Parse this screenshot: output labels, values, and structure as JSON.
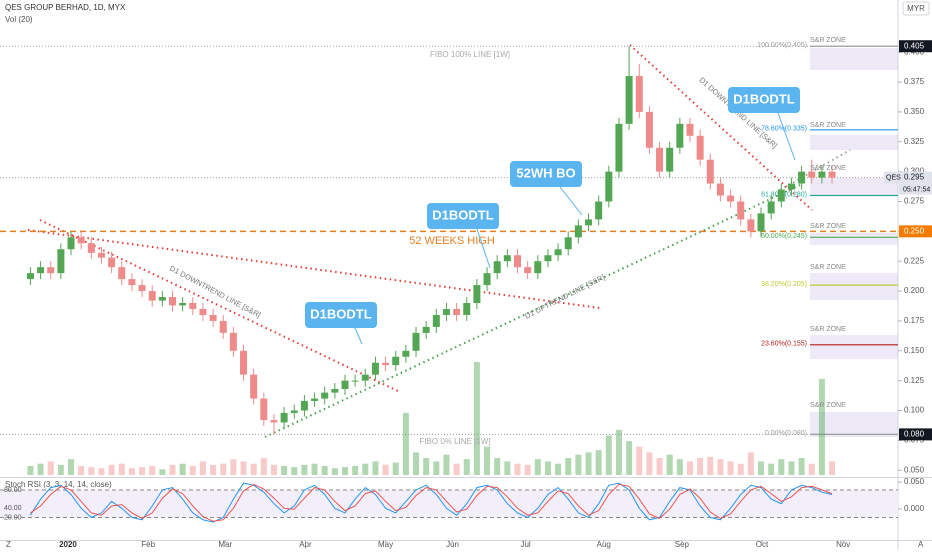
{
  "header": {
    "title": "QES GROUP BERHAD, 1D, MYX",
    "volume_label": "Vol (20)",
    "stoch_label": "Stoch RSI (3, 3, 14, 14, close)",
    "currency": "MYR",
    "symbol": "QES",
    "countdown": "05:47:54",
    "left_button": "Z",
    "right_button": "A"
  },
  "chart_data": {
    "type": "candlestick",
    "xlim": [
      -3,
      85.5
    ],
    "xticks": [
      {
        "value": 3.7,
        "label": "2020"
      },
      {
        "value": 11.6,
        "label": "Feb"
      },
      {
        "value": 19.2,
        "label": "Mar"
      },
      {
        "value": 27.1,
        "label": "Apr"
      },
      {
        "value": 35,
        "label": "May"
      },
      {
        "value": 41.6,
        "label": "Jun"
      },
      {
        "value": 48.8,
        "label": "Jul"
      },
      {
        "value": 56.5,
        "label": "Aug"
      },
      {
        "value": 64.2,
        "label": "Sep"
      },
      {
        "value": 72.1,
        "label": "Oct"
      },
      {
        "value": 80.1,
        "label": "Nov"
      }
    ],
    "ylim": [
      0.046,
      0.437
    ],
    "yticks": [
      {
        "value": 0.05,
        "label": "0.050"
      },
      {
        "value": 0.075,
        "label": "0.075"
      },
      {
        "value": 0.1,
        "label": "0.100"
      },
      {
        "value": 0.125,
        "label": "0.125"
      },
      {
        "value": 0.15,
        "label": "0.150"
      },
      {
        "value": 0.175,
        "label": "0.175"
      },
      {
        "value": 0.2,
        "label": "0.200"
      },
      {
        "value": 0.225,
        "label": "0.225"
      },
      {
        "value": 0.25,
        "label": "0.250"
      },
      {
        "value": 0.275,
        "label": "0.275"
      },
      {
        "value": 0.3,
        "label": "0.300"
      },
      {
        "value": 0.325,
        "label": "0.325"
      },
      {
        "value": 0.35,
        "label": "0.350"
      },
      {
        "value": 0.375,
        "label": "0.375"
      },
      {
        "value": 0.4,
        "label": "0.400"
      }
    ],
    "up_color": "#53a653",
    "down_color": "#ef8a8a",
    "open": [
      0.21,
      0.215,
      0.22,
      0.215,
      0.235,
      0.245,
      0.24,
      0.232,
      0.228,
      0.22,
      0.21,
      0.205,
      0.2,
      0.192,
      0.195,
      0.188,
      0.19,
      0.185,
      0.18,
      0.175,
      0.165,
      0.15,
      0.13,
      0.11,
      0.092,
      0.09,
      0.098,
      0.1,
      0.108,
      0.11,
      0.115,
      0.118,
      0.125,
      0.125,
      0.13,
      0.14,
      0.138,
      0.145,
      0.15,
      0.165,
      0.17,
      0.18,
      0.185,
      0.18,
      0.19,
      0.205,
      0.215,
      0.225,
      0.23,
      0.22,
      0.215,
      0.225,
      0.23,
      0.235,
      0.245,
      0.255,
      0.26,
      0.275,
      0.3,
      0.34,
      0.38,
      0.35,
      0.32,
      0.3,
      0.32,
      0.34,
      0.33,
      0.31,
      0.29,
      0.28,
      0.275,
      0.26,
      0.25,
      0.265,
      0.275,
      0.285,
      0.29,
      0.3,
      0.295,
      0.3
    ],
    "high": [
      0.22,
      0.225,
      0.225,
      0.24,
      0.25,
      0.25,
      0.245,
      0.237,
      0.233,
      0.225,
      0.215,
      0.21,
      0.205,
      0.2,
      0.2,
      0.195,
      0.195,
      0.19,
      0.185,
      0.18,
      0.17,
      0.155,
      0.135,
      0.115,
      0.097,
      0.103,
      0.105,
      0.113,
      0.115,
      0.12,
      0.123,
      0.13,
      0.13,
      0.135,
      0.145,
      0.145,
      0.15,
      0.155,
      0.17,
      0.175,
      0.185,
      0.19,
      0.19,
      0.195,
      0.21,
      0.22,
      0.23,
      0.235,
      0.235,
      0.225,
      0.23,
      0.235,
      0.24,
      0.25,
      0.26,
      0.265,
      0.28,
      0.305,
      0.345,
      0.405,
      0.39,
      0.355,
      0.325,
      0.325,
      0.345,
      0.345,
      0.335,
      0.315,
      0.295,
      0.285,
      0.28,
      0.265,
      0.27,
      0.28,
      0.29,
      0.295,
      0.305,
      0.31,
      0.305,
      0.305
    ],
    "low": [
      0.205,
      0.21,
      0.21,
      0.21,
      0.23,
      0.235,
      0.227,
      0.223,
      0.215,
      0.205,
      0.2,
      0.195,
      0.187,
      0.187,
      0.183,
      0.183,
      0.18,
      0.175,
      0.17,
      0.16,
      0.145,
      0.125,
      0.105,
      0.087,
      0.08,
      0.085,
      0.093,
      0.095,
      0.103,
      0.105,
      0.11,
      0.113,
      0.12,
      0.12,
      0.125,
      0.133,
      0.133,
      0.14,
      0.145,
      0.16,
      0.165,
      0.175,
      0.175,
      0.175,
      0.185,
      0.2,
      0.21,
      0.22,
      0.215,
      0.21,
      0.21,
      0.22,
      0.225,
      0.23,
      0.24,
      0.25,
      0.255,
      0.27,
      0.295,
      0.335,
      0.345,
      0.315,
      0.295,
      0.295,
      0.315,
      0.325,
      0.305,
      0.285,
      0.275,
      0.27,
      0.255,
      0.245,
      0.245,
      0.26,
      0.27,
      0.28,
      0.285,
      0.29,
      0.29,
      0.29
    ],
    "close": [
      0.215,
      0.22,
      0.215,
      0.235,
      0.245,
      0.24,
      0.232,
      0.228,
      0.22,
      0.21,
      0.205,
      0.2,
      0.192,
      0.195,
      0.188,
      0.19,
      0.185,
      0.18,
      0.175,
      0.165,
      0.15,
      0.13,
      0.11,
      0.092,
      0.09,
      0.098,
      0.1,
      0.108,
      0.11,
      0.115,
      0.118,
      0.125,
      0.125,
      0.13,
      0.14,
      0.138,
      0.145,
      0.15,
      0.165,
      0.17,
      0.18,
      0.185,
      0.18,
      0.19,
      0.205,
      0.215,
      0.225,
      0.23,
      0.22,
      0.215,
      0.225,
      0.23,
      0.235,
      0.245,
      0.255,
      0.26,
      0.275,
      0.3,
      0.34,
      0.38,
      0.35,
      0.32,
      0.3,
      0.32,
      0.34,
      0.33,
      0.31,
      0.29,
      0.28,
      0.275,
      0.26,
      0.25,
      0.265,
      0.275,
      0.285,
      0.29,
      0.3,
      0.295,
      0.3,
      0.295
    ],
    "volume": [
      8,
      10,
      12,
      9,
      14,
      8,
      7,
      6,
      9,
      10,
      6,
      7,
      8,
      5,
      9,
      10,
      8,
      12,
      9,
      10,
      14,
      12,
      10,
      15,
      9,
      8,
      7,
      9,
      10,
      8,
      6,
      7,
      8,
      10,
      12,
      9,
      11,
      55,
      20,
      15,
      12,
      18,
      10,
      14,
      100,
      25,
      15,
      12,
      10,
      9,
      14,
      12,
      10,
      15,
      18,
      20,
      22,
      35,
      40,
      30,
      25,
      20,
      15,
      18,
      14,
      12,
      15,
      16,
      14,
      12,
      10,
      20,
      12,
      10,
      14,
      12,
      15,
      10,
      85,
      12
    ],
    "volume_lim": [
      0,
      100
    ],
    "fib_levels": [
      {
        "label": "100.00%(0.405)",
        "value": 0.405,
        "color": "#9e9e9e"
      },
      {
        "label": "78.60%(0.335)",
        "value": 0.335,
        "color": "#2196f3"
      },
      {
        "label": "61.80%(0.280)",
        "value": 0.28,
        "color": "#26a69a"
      },
      {
        "label": "50.00%(0.245)",
        "value": 0.245,
        "color": "#4caf50"
      },
      {
        "label": "38.20%(0.205)",
        "value": 0.205,
        "color": "#c0ca33"
      },
      {
        "label": "23.60%(0.155)",
        "value": 0.155,
        "color": "#b71c1c"
      },
      {
        "label": "0.00%(0.080)",
        "value": 0.08,
        "color": "#9e9e9e"
      }
    ],
    "price_tags": [
      {
        "value": 0.405,
        "label": "0.405",
        "color": "#131722"
      },
      {
        "value": 0.295,
        "label": "0.295",
        "color": "#e0e3eb"
      },
      {
        "value": 0.25,
        "label": "0.250",
        "color": "#f57c00"
      },
      {
        "value": 0.08,
        "label": "0.080",
        "color": "#131722"
      }
    ],
    "annotations": {
      "callouts": [
        "D1BODTL",
        "D1BODTL",
        "52WH BO",
        "D1BODTL"
      ],
      "callout_color": "#5ab4f0",
      "trendline_labels": [
        "D1 DOWNTREND LINE [S&R]",
        "D1 DOWNTREND LINE [S&R]",
        "D1 UPTREND LINE [S&R]"
      ],
      "zone_label": "S&R ZONE",
      "fibo_top": "FIBO 100% LINE [1W]",
      "fibo_bottom": "FIBO 0% LINE [1W]",
      "high_label": "52 WEEKS HIGH",
      "high_color": "#e67e22"
    },
    "stoch": {
      "ylim": [
        -29,
        106
      ],
      "yticks": [
        {
          "value": 80,
          "label": "80.00"
        },
        {
          "value": 40,
          "label": "40.00"
        },
        {
          "value": 20,
          "label": "20.00"
        }
      ],
      "y2lim": [
        -0.0574,
        0.0574
      ],
      "y2ticks": [
        {
          "value": 0.05,
          "label": "0.050"
        },
        {
          "value": 0,
          "label": "0.000"
        }
      ],
      "series": [
        {
          "color": "#2196f3",
          "values": [
            25,
            60,
            85,
            90,
            70,
            40,
            20,
            30,
            55,
            40,
            20,
            15,
            45,
            80,
            85,
            60,
            30,
            15,
            10,
            20,
            60,
            95,
            90,
            75,
            50,
            30,
            45,
            80,
            90,
            70,
            40,
            30,
            60,
            85,
            70,
            40,
            30,
            55,
            80,
            90,
            70,
            40,
            25,
            50,
            85,
            90,
            80,
            50,
            30,
            20,
            40,
            70,
            85,
            60,
            30,
            20,
            50,
            90,
            95,
            80,
            40,
            15,
            20,
            55,
            85,
            80,
            45,
            20,
            15,
            40,
            70,
            90,
            85,
            60,
            50,
            80,
            90,
            85,
            75,
            70
          ]
        },
        {
          "color": "#ef5350",
          "values": [
            30,
            45,
            70,
            88,
            80,
            55,
            30,
            25,
            45,
            48,
            30,
            18,
            30,
            62,
            82,
            72,
            45,
            22,
            12,
            15,
            40,
            78,
            92,
            82,
            62,
            40,
            38,
            62,
            85,
            80,
            55,
            35,
            45,
            72,
            78,
            55,
            35,
            42,
            68,
            85,
            80,
            55,
            32,
            38,
            68,
            88,
            85,
            65,
            40,
            25,
            30,
            55,
            78,
            72,
            45,
            25,
            35,
            70,
            92,
            88,
            60,
            28,
            18,
            38,
            70,
            82,
            62,
            32,
            18,
            28,
            55,
            80,
            88,
            72,
            55,
            65,
            85,
            88,
            80,
            72
          ]
        }
      ]
    }
  }
}
